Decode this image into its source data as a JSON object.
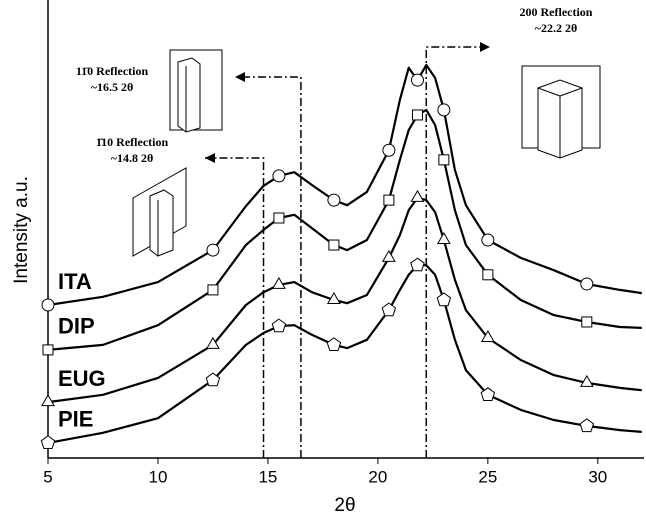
{
  "chart_data": {
    "type": "line",
    "xlabel": "2θ",
    "ylabel": "Intensity a.u.",
    "x": [
      5,
      7.5,
      10,
      12.5,
      14,
      14.8,
      15.5,
      16.2,
      17,
      18,
      18.6,
      19.5,
      20.5,
      21,
      21.4,
      21.8,
      22.2,
      22.6,
      23,
      23.5,
      24,
      25,
      26.5,
      28,
      29.5,
      31,
      32
    ],
    "series": [
      {
        "name": "ITA",
        "color": "#000000",
        "marker": "circle",
        "values": [
          33.4,
          35.2,
          38.4,
          45.4,
          55.0,
          59.4,
          61.6,
          62.4,
          59.6,
          56.3,
          55.2,
          58.1,
          67.2,
          78.2,
          85.2,
          82.5,
          85.8,
          83.0,
          76.0,
          62.9,
          55.2,
          47.6,
          43.7,
          41.0,
          38.0,
          36.7,
          36.0
        ]
      },
      {
        "name": "DIP",
        "color": "#000000",
        "marker": "square",
        "values": [
          23.6,
          24.7,
          29.0,
          36.7,
          46.5,
          49.8,
          52.4,
          53.1,
          50.2,
          46.5,
          45.4,
          47.6,
          56.3,
          65.1,
          71.6,
          74.9,
          76.0,
          72.7,
          65.1,
          54.1,
          46.5,
          40.0,
          34.5,
          31.2,
          29.7,
          28.6,
          28.4
        ]
      },
      {
        "name": "EUG",
        "color": "#000000",
        "marker": "triangle",
        "values": [
          12.2,
          13.8,
          17.5,
          24.7,
          33.4,
          36.2,
          37.8,
          38.4,
          36.2,
          34.5,
          33.8,
          35.6,
          43.7,
          48.7,
          54.1,
          56.8,
          56.3,
          53.7,
          47.6,
          38.9,
          32.3,
          26.2,
          21.4,
          18.1,
          16.4,
          15.3,
          14.8
        ]
      },
      {
        "name": "PIE",
        "color": "#000000",
        "marker": "pentagon",
        "values": [
          3.3,
          5.5,
          8.7,
          17.0,
          24.7,
          27.3,
          28.8,
          29.0,
          26.9,
          24.7,
          24.0,
          25.8,
          32.3,
          36.7,
          40.0,
          42.1,
          42.1,
          40.0,
          34.5,
          25.8,
          19.2,
          13.8,
          10.5,
          8.3,
          7.0,
          6.1,
          5.7
        ]
      }
    ],
    "xlim": [
      5,
      32.1
    ],
    "ylim": [
      0,
      100
    ],
    "xticks": [
      5,
      10,
      15,
      20,
      25,
      30
    ],
    "annotations": [
      {
        "label": "11̄0 Reflection",
        "position": "~16.5 2θ",
        "x": 16.5
      },
      {
        "label": "1̄10 Reflection",
        "position": "~14.8 2θ",
        "x": 14.8
      },
      {
        "label": "200 Reflection",
        "position": "~22.2 2θ",
        "x": 22.2
      }
    ]
  }
}
